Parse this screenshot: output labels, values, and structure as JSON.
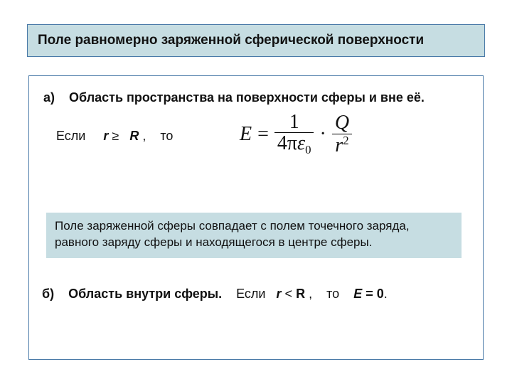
{
  "colors": {
    "panel_bg": "#c6dde2",
    "panel_border": "#4a7aa8",
    "page_bg": "#ffffff",
    "text": "#111111"
  },
  "typography": {
    "body_family": "Arial",
    "body_size_pt": 18,
    "title_size_pt": 19,
    "formula_family": "Times New Roman",
    "formula_size_pt": 28
  },
  "title": "Поле   равномерно  заряженной   сферической  поверхности",
  "section_a": {
    "label": "а)",
    "text": "Область пространства на поверхности сферы и вне её."
  },
  "condition_a": {
    "prefix": "Если",
    "var_r": "r",
    "cmp": "≥",
    "var_R": "R",
    "comma": " ,",
    "suffix": "то"
  },
  "formula": {
    "lhs": "E",
    "frac1_num": "1",
    "frac1_den_left": "4π",
    "frac1_den_eps": "ε",
    "frac1_den_sub": "0",
    "dot": "·",
    "frac2_num": "Q",
    "frac2_den_var": "r",
    "frac2_den_sup": "2"
  },
  "note": "Поле  заряженной  сферы совпадает с полем точечного  заряда, равного  заряду  сферы и находящегося  в  центре  сферы.",
  "section_b": {
    "label": "б)",
    "text1": "Область  внутри сферы.",
    "cond_prefix": "Если",
    "var_r": "r",
    "cmp": "<",
    "var_R": "R",
    "comma": " ,",
    "cond_suffix": "то",
    "result_var": "E",
    "result_eq": "= 0",
    "tail": "."
  }
}
